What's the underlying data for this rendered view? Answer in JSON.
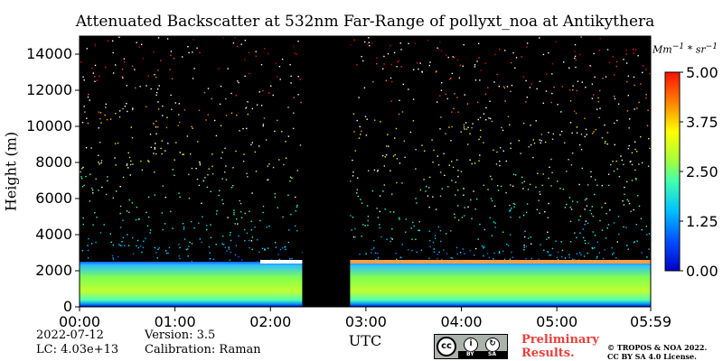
{
  "chart_data": {
    "type": "heatmap",
    "title": "Attenuated Backscatter at 532nm Far-Range of pollyxt_noa at Antikythera",
    "xlabel": "UTC",
    "ylabel": "Height (m)",
    "x_ticks": [
      "00:00",
      "01:00",
      "02:00",
      "03:00",
      "04:00",
      "05:00",
      "05:59"
    ],
    "x_range_minutes": [
      0,
      359
    ],
    "y_ticks": [
      0,
      2000,
      4000,
      6000,
      8000,
      10000,
      12000,
      14000
    ],
    "y_range": [
      0,
      15000
    ],
    "colorbar": {
      "unit": "Mm^-1 * sr^-1",
      "ticks": [
        "0.00",
        "1.25",
        "2.50",
        "3.75",
        "5.00"
      ],
      "range": [
        0,
        5
      ],
      "colormap": "jet"
    },
    "data_gap_utc": [
      "02:20",
      "02:50"
    ],
    "layers": [
      {
        "feature": "strong aerosol layer",
        "height_m": [
          0,
          2500
        ],
        "value_range": [
          1.5,
          3.0
        ]
      },
      {
        "feature": "aerosol layer top (high backscatter)",
        "height_m": [
          2400,
          2600
        ],
        "value_range": [
          4.5,
          5.0
        ]
      },
      {
        "feature": "sparse noise above boundary layer",
        "height_m": [
          2600,
          15000
        ],
        "value_range": [
          0,
          5.0
        ]
      }
    ]
  },
  "footer": {
    "date": "2022-07-12",
    "lc": "LC: 4.03e+13",
    "version": "Version: 3.5",
    "calibration": "Calibration: Raman",
    "preliminary_1": "Preliminary",
    "preliminary_2": "Results.",
    "copyright_1": "© TROPOS & NOA 2022.",
    "copyright_2": "CC BY SA 4.0 License.",
    "badge_cc": "cc",
    "badge_by": "BY",
    "badge_sa": "SA"
  },
  "colors": {
    "background": "#000000",
    "gap": "#000000",
    "noise": "#ffffff"
  }
}
